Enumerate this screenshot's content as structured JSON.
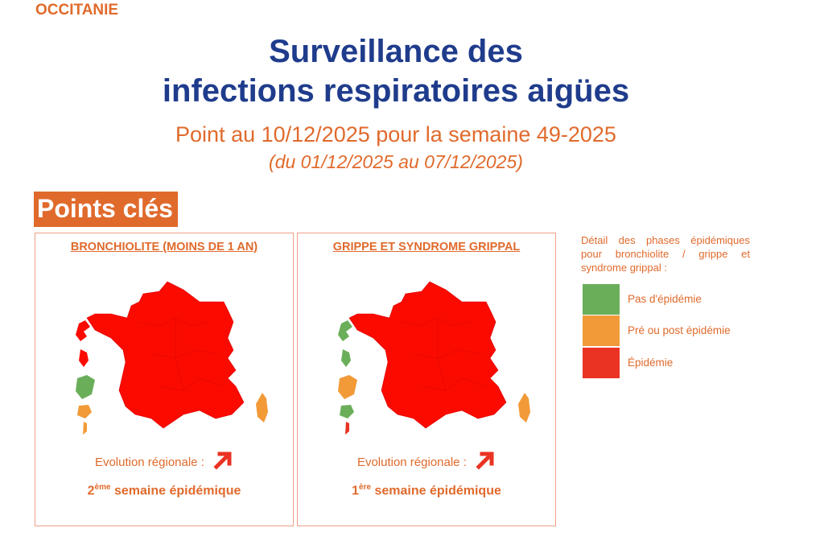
{
  "header": {
    "region": "OCCITANIE",
    "title_line1": "Surveillance des",
    "title_line2": "infections respiratoires aigües",
    "subtitle": "Point au 10/12/2025 pour la semaine 49-2025",
    "date_range": "(du 01/12/2025 au 07/12/2025)"
  },
  "section": {
    "title": "Points clés"
  },
  "panels": [
    {
      "title": "BRONCHIOLITE (MOINS DE 1 AN)",
      "map_status": {
        "mainland": "Épidémie",
        "corsica": "Pré ou post épidémie",
        "guadeloupe": "Épidémie",
        "martinique": "Épidémie",
        "guyane": "Pas d'épidémie",
        "reunion": "Pré ou post épidémie",
        "mayotte": "Pré ou post épidémie"
      },
      "evolution_label": "Evolution régionale :",
      "evolution_icon": "arrow-up-right-icon",
      "week_number": "2",
      "week_suffix": "ème",
      "week_text": " semaine épidémique"
    },
    {
      "title": "GRIPPE ET SYNDROME GRIPPAL",
      "map_status": {
        "mainland": "Épidémie",
        "corsica": "Pré ou post épidémie",
        "guadeloupe": "Pas d'épidémie",
        "martinique": "Pas d'épidémie",
        "guyane": "Pré ou post épidémie",
        "reunion": "Pas d'épidémie",
        "mayotte": "Épidémie"
      },
      "evolution_label": "Evolution régionale :",
      "evolution_icon": "arrow-up-right-icon",
      "week_number": "1",
      "week_suffix": "ère",
      "week_text": " semaine épidémique"
    }
  ],
  "legend": {
    "title": "Détail des phases épidémiques pour bronchiolite / grippe et syndrome grippal :",
    "items": [
      {
        "label": "Pas d'épidémie",
        "color": "#6aae5a"
      },
      {
        "label": "Pré ou post épidémie",
        "color": "#f29a38"
      },
      {
        "label": "Épidémie",
        "color": "#ea3323"
      }
    ]
  },
  "colors": {
    "accent": "#e06a2c",
    "title": "#1f3c8c",
    "epidemic": "#fb0a00"
  }
}
